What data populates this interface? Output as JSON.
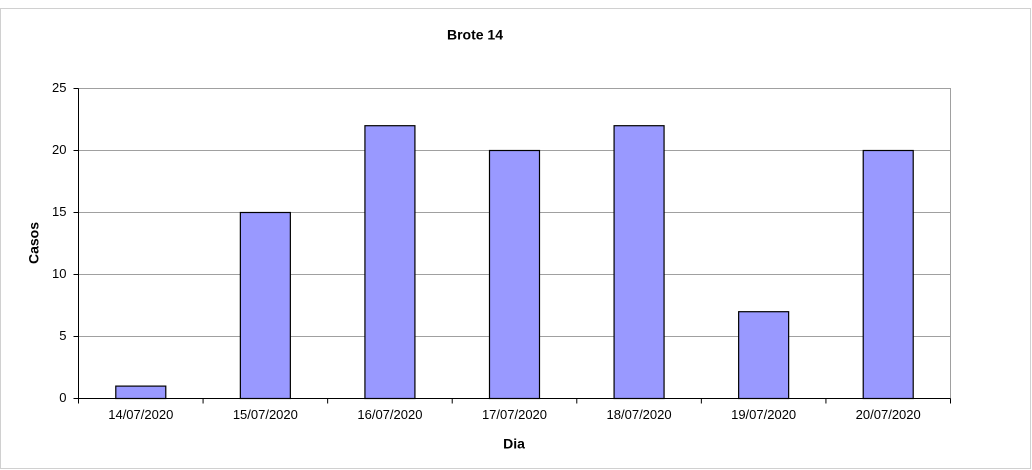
{
  "chart_data": {
    "type": "bar",
    "title": "Brote 14",
    "x_label": "Dia",
    "y_label": "Casos",
    "categories": [
      "14/07/2020",
      "15/07/2020",
      "16/07/2020",
      "17/07/2020",
      "18/07/2020",
      "19/07/2020",
      "20/07/2020"
    ],
    "values": [
      1,
      15,
      22,
      20,
      22,
      7,
      20
    ],
    "color": "#9999ff",
    "ylim": [
      0,
      25
    ],
    "yticks": [
      0,
      5,
      10,
      15,
      20,
      25
    ],
    "grid": true
  }
}
